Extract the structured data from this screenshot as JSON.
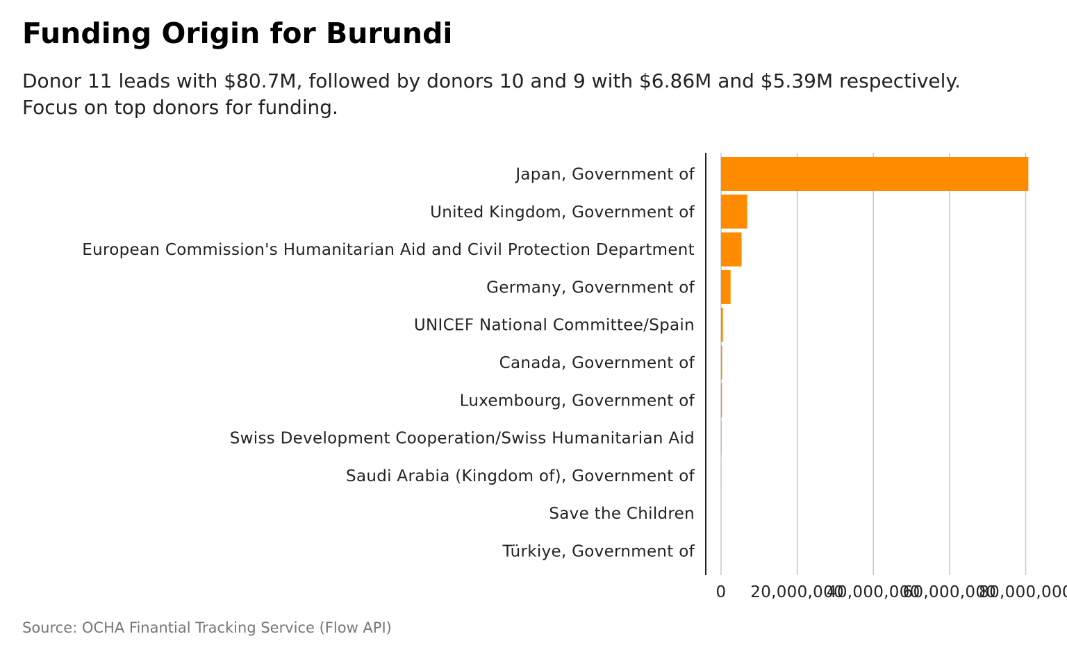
{
  "title": "Funding Origin for Burundi",
  "subtitle": "Donor 11 leads with $80.7M, followed by donors 10 and 9 with $6.86M and $5.39M respectively. Focus on top donors for funding.",
  "source": "Source: OCHA Finantial Tracking Service (Flow API)",
  "chart_data": {
    "type": "bar",
    "orientation": "horizontal",
    "title": "Funding Origin for Burundi",
    "xlabel": "",
    "ylabel": "",
    "xlim": [
      0,
      81000000
    ],
    "xticks": [
      0,
      20000000,
      40000000,
      60000000,
      80000000
    ],
    "xtick_labels": [
      "0",
      "20,000,000",
      "40,000,000",
      "60,000,000",
      "80,000,000"
    ],
    "grid": "vertical",
    "bar_color": "#ff8c00",
    "categories": [
      "Japan, Government of",
      "United Kingdom, Government of",
      "European Commission's Humanitarian Aid and Civil Protection Department",
      "Germany, Government of",
      "UNICEF National Committee/Spain",
      "Canada, Government of",
      "Luxembourg, Government of",
      "Swiss Development Cooperation/Swiss Humanitarian Aid",
      "Saudi Arabia (Kingdom of), Government of",
      "Save the Children",
      "Türkiye, Government of"
    ],
    "values": [
      80700000,
      6860000,
      5390000,
      2500000,
      500000,
      300000,
      250000,
      100000,
      30000,
      20000,
      10000
    ]
  }
}
